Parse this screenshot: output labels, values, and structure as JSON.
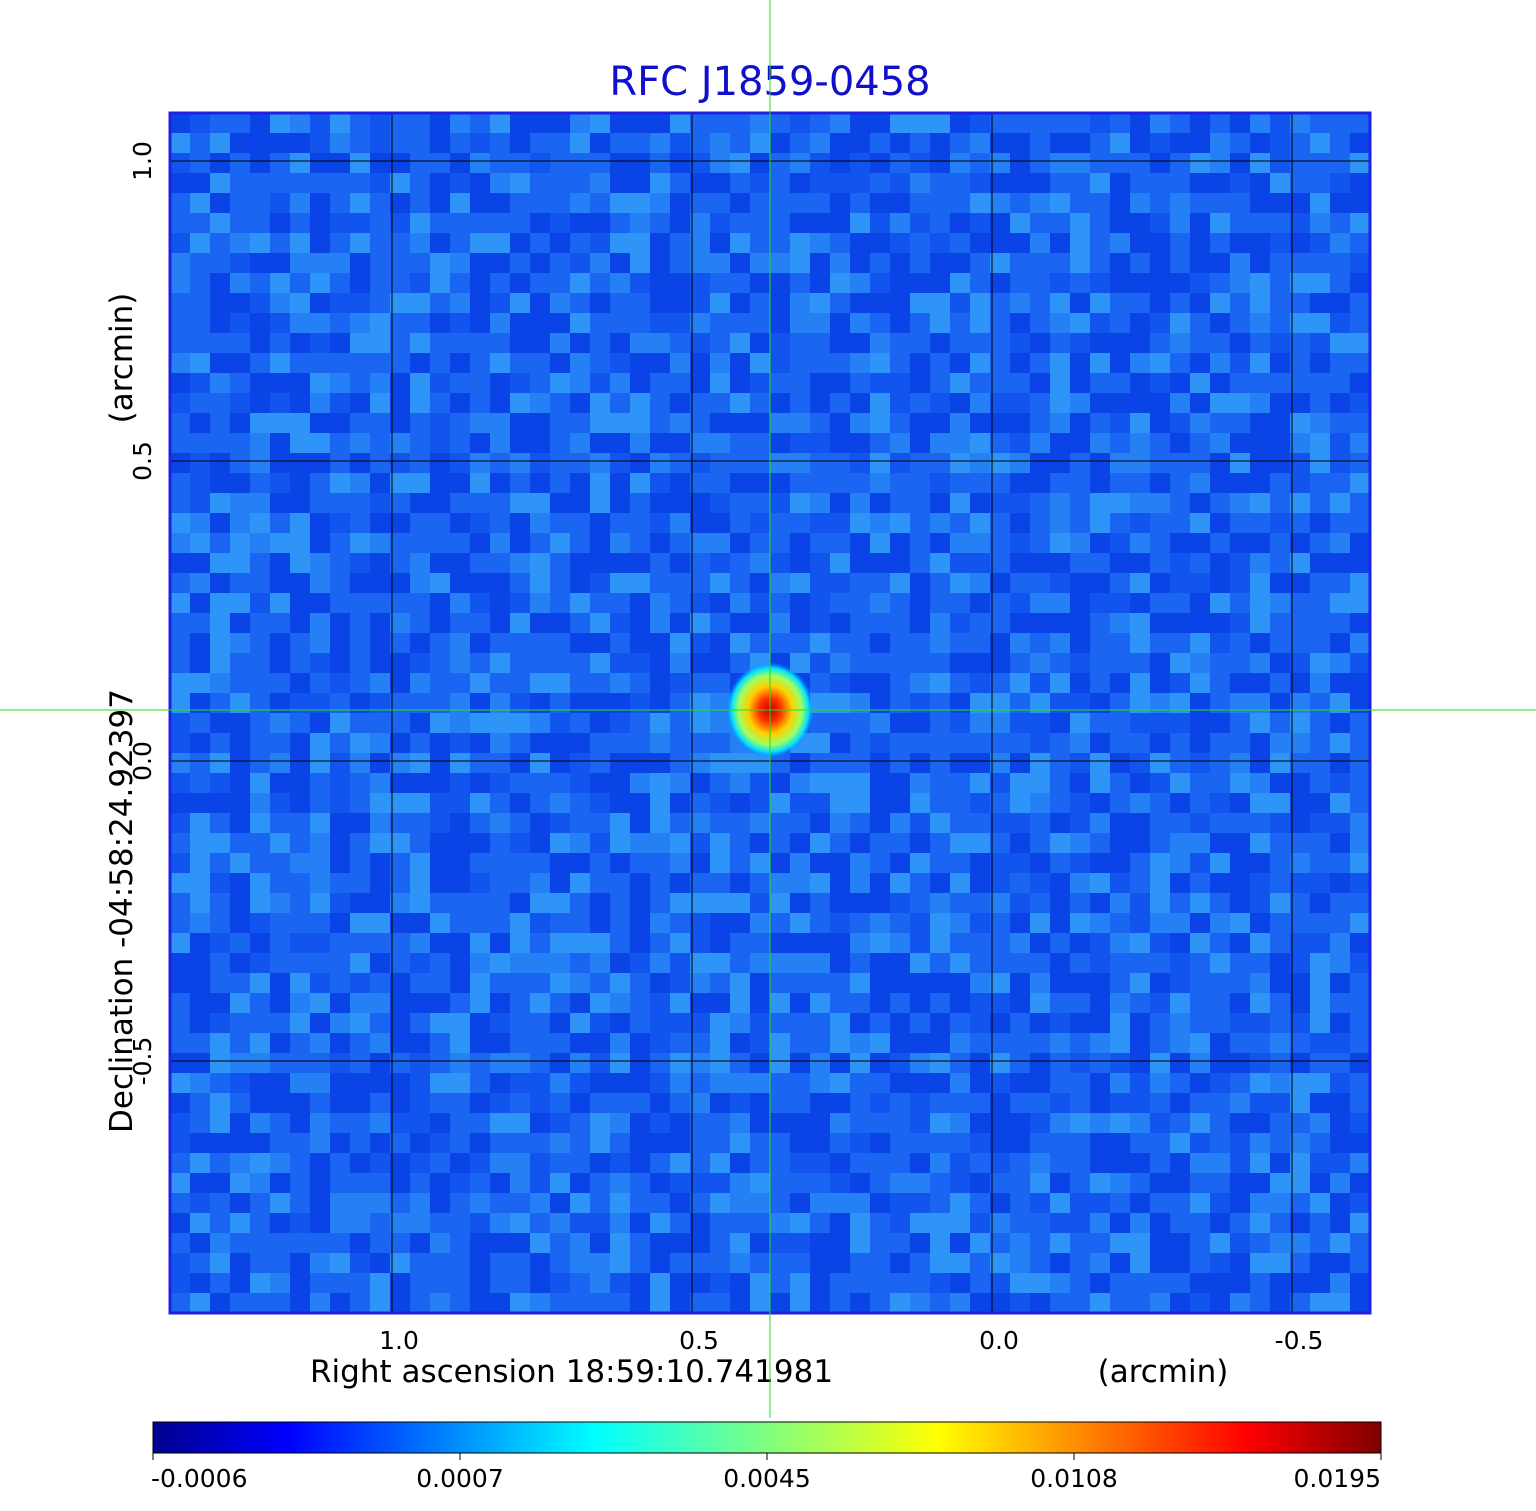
{
  "chart_data": {
    "type": "heatmap",
    "title": "RFC J1859-0458",
    "xlabel": "Right ascension  18:59:10.741981",
    "xunit": "(arcmin)",
    "ylabel": "Declination  -04:58:24.92397",
    "yunit": "(arcmin)",
    "xlim": [
      1.37,
      -0.63
    ],
    "ylim": [
      -0.92,
      1.08
    ],
    "grid": true,
    "x_ticks": [
      1.0,
      0.5,
      0.0,
      -0.5
    ],
    "x_tick_labels": [
      "1.0",
      "0.5",
      "0.0",
      "-0.5"
    ],
    "y_ticks": [
      1.0,
      0.5,
      0.0,
      -0.5
    ],
    "y_tick_labels": [
      "1.0",
      "0.5",
      "0.0",
      "-0.5"
    ],
    "crosshair": {
      "x": 0.37,
      "y": 0.085
    },
    "source": {
      "x": 0.37,
      "y": 0.085,
      "peak": 0.0195
    },
    "colormap": "jet",
    "colorbar": {
      "ticks": [
        -0.0006,
        0.0007,
        0.0045,
        0.0108,
        0.0195
      ],
      "tick_labels": [
        "-0.0006",
        "0.0007",
        "0.0045",
        "0.0108",
        "0.0195"
      ],
      "min": -0.0006,
      "max": 0.0195
    },
    "colors": {
      "title": "#1010cc",
      "frame": "#2020e0",
      "crosshair": "#22dd22",
      "grid": "#000000"
    }
  }
}
